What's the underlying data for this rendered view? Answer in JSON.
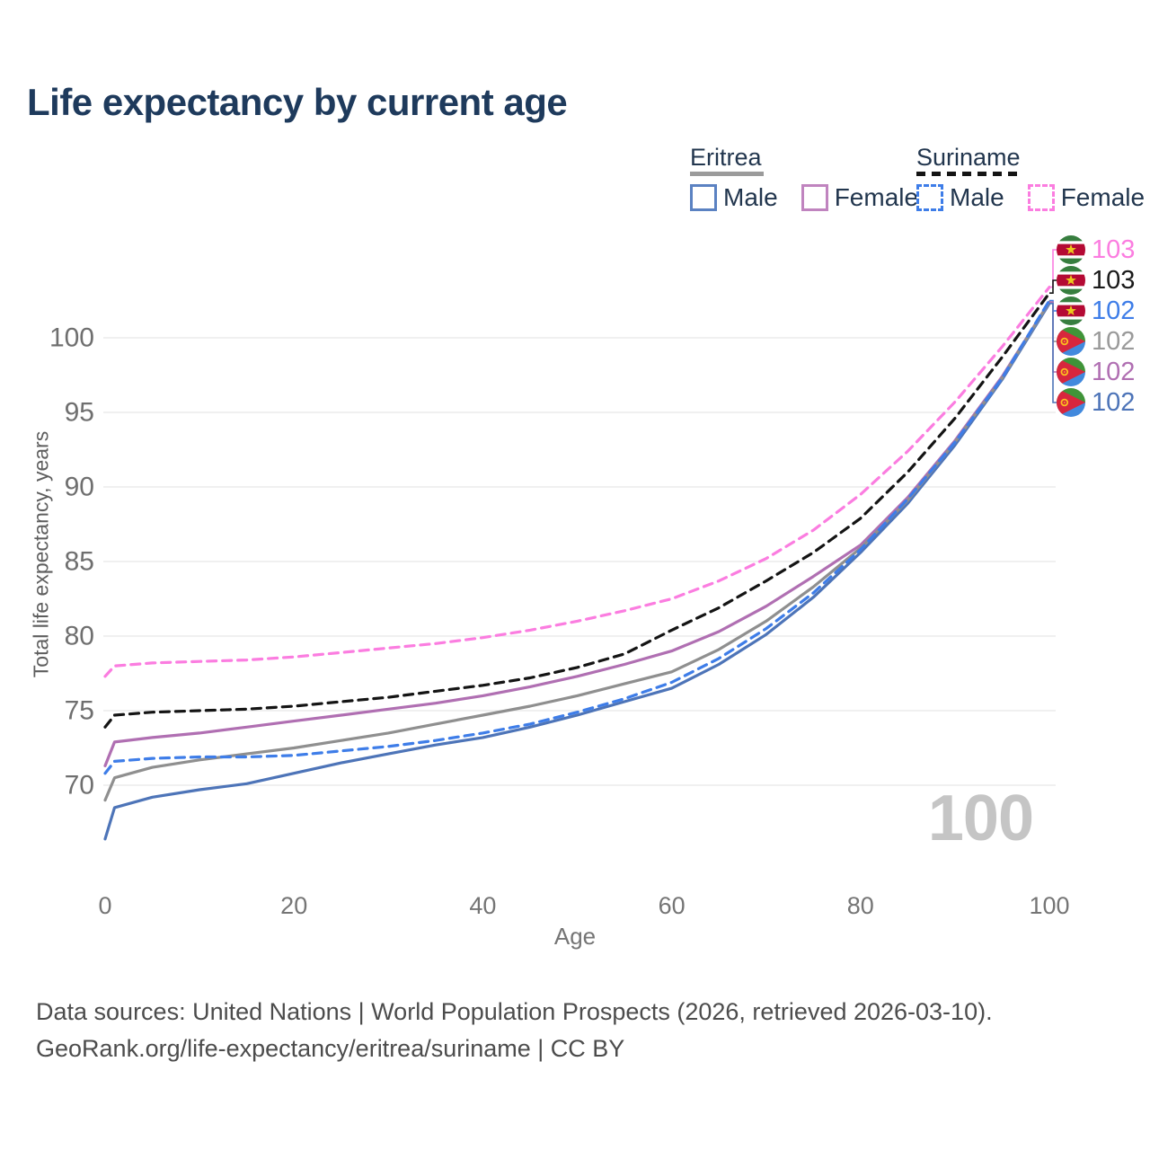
{
  "title": "Life expectancy by current age",
  "watermark_age": "100",
  "legend": {
    "groups": [
      {
        "country": "Eritrea",
        "line_style": "solid",
        "underline_color": "#9b9b9b",
        "items": [
          {
            "label": "Male",
            "color": "#5b82c2",
            "dashed": false
          },
          {
            "label": "Female",
            "color": "#c084bf",
            "dashed": false
          }
        ]
      },
      {
        "country": "Suriname",
        "line_style": "dashed",
        "underline_color": "#141414",
        "items": [
          {
            "label": "Male",
            "color": "#3e7de8",
            "dashed": true
          },
          {
            "label": "Female",
            "color": "#fb7de0",
            "dashed": true
          }
        ]
      }
    ]
  },
  "footer": {
    "line1": "Data sources: United Nations | World Population Prospects (2026, retrieved 2026-03-10).",
    "line2": "GeoRank.org/life-expectancy/eritrea/suriname | CC BY"
  },
  "chart_data": {
    "type": "line",
    "title": "Life expectancy by current age",
    "xlabel": "Age",
    "ylabel": "Total life expectancy, years",
    "x_ticks": [
      0,
      20,
      40,
      60,
      80,
      100
    ],
    "y_ticks": [
      70,
      75,
      80,
      85,
      90,
      95,
      100
    ],
    "xlim": [
      0,
      100
    ],
    "ylim": [
      65,
      104
    ],
    "grid": "horizontal",
    "legend_position": "top-right",
    "ages": [
      0,
      1,
      5,
      10,
      15,
      20,
      25,
      30,
      35,
      40,
      45,
      50,
      55,
      60,
      65,
      70,
      75,
      80,
      85,
      90,
      95,
      100
    ],
    "series": [
      {
        "name": "Suriname Female",
        "country": "suriname",
        "sex": "female",
        "color": "#fb7de0",
        "dashed": true,
        "end_label": "103",
        "end_label_color": "#fb7de0",
        "values": [
          77.3,
          78.0,
          78.2,
          78.3,
          78.4,
          78.6,
          78.9,
          79.2,
          79.5,
          79.9,
          80.4,
          81.0,
          81.7,
          82.5,
          83.7,
          85.2,
          87.1,
          89.5,
          92.4,
          95.7,
          99.4,
          103.4
        ]
      },
      {
        "name": "Suriname",
        "country": "suriname",
        "sex": "all",
        "color": "#141414",
        "dashed": true,
        "end_label": "103",
        "end_label_color": "#1a1a1a",
        "values": [
          73.9,
          74.7,
          74.9,
          75.0,
          75.1,
          75.3,
          75.6,
          75.9,
          76.3,
          76.7,
          77.2,
          77.9,
          78.8,
          80.4,
          81.9,
          83.7,
          85.6,
          87.9,
          91.0,
          94.6,
          98.7,
          103.0
        ]
      },
      {
        "name": "Suriname Male",
        "country": "suriname",
        "sex": "male",
        "color": "#3e7de8",
        "dashed": true,
        "end_label": "102",
        "end_label_color": "#3e7de8",
        "values": [
          70.8,
          71.6,
          71.8,
          71.9,
          71.9,
          72.0,
          72.3,
          72.6,
          73.0,
          73.5,
          74.1,
          74.9,
          75.8,
          76.9,
          78.5,
          80.5,
          82.9,
          85.8,
          89.2,
          93.0,
          97.3,
          102.5
        ]
      },
      {
        "name": "Eritrea",
        "country": "eritrea",
        "sex": "all",
        "color": "#8f8f8f",
        "dashed": false,
        "end_label": "102",
        "end_label_color": "#9a9a9a",
        "values": [
          69.0,
          70.5,
          71.2,
          71.7,
          72.1,
          72.5,
          73.0,
          73.5,
          74.1,
          74.7,
          75.3,
          76.0,
          76.8,
          77.6,
          79.1,
          81.0,
          83.3,
          85.9,
          89.1,
          93.0,
          97.3,
          102.4
        ]
      },
      {
        "name": "Eritrea Female",
        "country": "eritrea",
        "sex": "female",
        "color": "#b06fb2",
        "dashed": false,
        "end_label": "102",
        "end_label_color": "#b06fb2",
        "values": [
          71.3,
          72.9,
          73.2,
          73.5,
          73.9,
          74.3,
          74.7,
          75.1,
          75.5,
          76.0,
          76.6,
          77.3,
          78.1,
          79.0,
          80.3,
          82.0,
          84.0,
          86.1,
          89.3,
          93.1,
          97.4,
          102.4
        ]
      },
      {
        "name": "Eritrea Male",
        "country": "eritrea",
        "sex": "male",
        "color": "#4d74b8",
        "dashed": false,
        "end_label": "102",
        "end_label_color": "#4d74b8",
        "values": [
          66.4,
          68.5,
          69.2,
          69.7,
          70.1,
          70.8,
          71.5,
          72.1,
          72.7,
          73.2,
          73.9,
          74.7,
          75.6,
          76.5,
          78.1,
          80.1,
          82.6,
          85.6,
          88.9,
          92.8,
          97.2,
          102.3
        ]
      }
    ],
    "flag_colors": {
      "suriname": {
        "green": "#377e3f",
        "white": "#ffffff",
        "red": "#b40a34",
        "star": "#ecc81d"
      },
      "eritrea": {
        "green": "#3f9438",
        "blue": "#4189dd",
        "red": "#d7263d",
        "gold": "#fcc11e"
      }
    }
  }
}
